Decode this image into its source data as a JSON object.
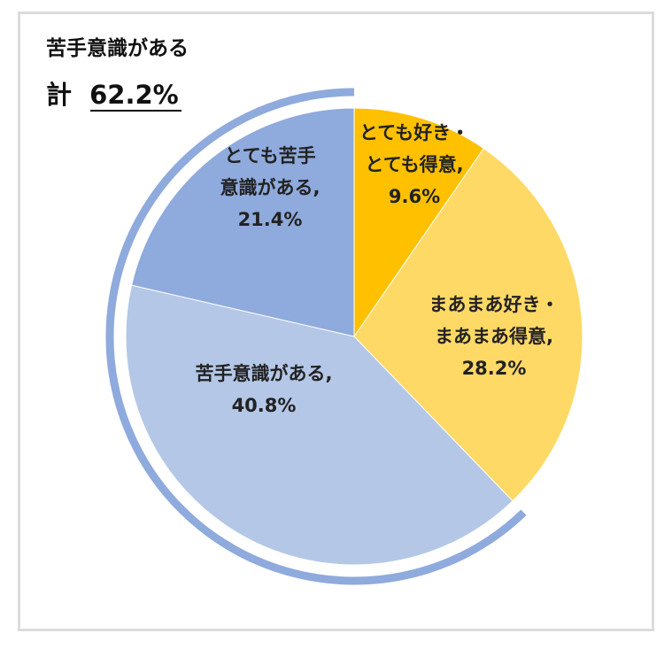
{
  "chart_data": {
    "type": "pie",
    "start_angle_deg": 0,
    "direction": "clockwise",
    "slices": [
      {
        "label_lines": [
          "とても好き・",
          "とても得意,",
          "9.6%"
        ],
        "value": 9.6,
        "color": "#ffc000"
      },
      {
        "label_lines": [
          "まあまあ好き・",
          "まあまあ得意,",
          "28.2%"
        ],
        "value": 28.2,
        "color": "#ffd966"
      },
      {
        "label_lines": [
          "苦手意識がある,",
          "40.8%"
        ],
        "value": 40.8,
        "color": "#b4c7e7"
      },
      {
        "label_lines": [
          "とても苦手",
          "意識がある,",
          "21.4%"
        ],
        "value": 21.4,
        "color": "#8faadc"
      }
    ],
    "bracket": {
      "title": "苦手意識がある",
      "total_prefix": "計",
      "total_value": "62.2%",
      "color": "#8faadc"
    }
  }
}
